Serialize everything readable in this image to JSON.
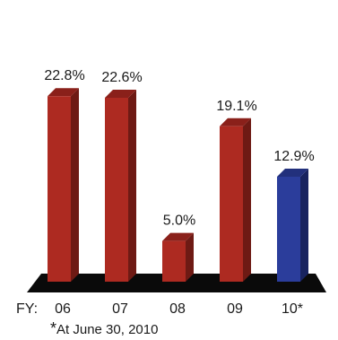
{
  "chart_data": {
    "type": "bar",
    "axis_prefix": "FY:",
    "categories": [
      "06",
      "07",
      "08",
      "09",
      "10*"
    ],
    "values": [
      22.8,
      22.6,
      5.0,
      19.1,
      12.9
    ],
    "value_labels": [
      "22.8%",
      "22.6%",
      "5.0%",
      "19.1%",
      "12.9%"
    ],
    "ylim": [
      0,
      25
    ],
    "grid": false,
    "legend": "none",
    "colors": {
      "default_front": "#ad2a21",
      "default_side": "#6e1a14",
      "default_top": "#8a201a",
      "highlight_front": "#2b3d9b",
      "highlight_side": "#18235f",
      "highlight_top": "#22307c",
      "highlight_index": 4,
      "floor": "#0a0a0a"
    }
  },
  "footnote": {
    "marker": "*",
    "text": "At June 30, 2010"
  }
}
